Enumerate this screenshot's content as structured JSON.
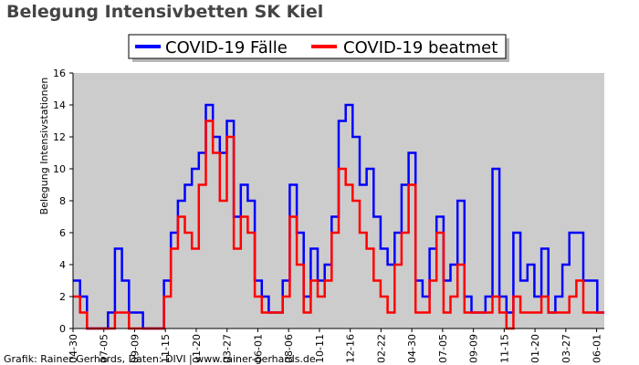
{
  "chart_data": {
    "type": "line",
    "title": "Belegung Intensivbetten SK Kiel",
    "xlabel": "",
    "ylabel": "Belegung Intensivstationen",
    "ylim": [
      0,
      16
    ],
    "yticks": [
      0,
      2,
      4,
      6,
      8,
      10,
      12,
      14,
      16
    ],
    "grid": false,
    "legend_position": "top",
    "background": "#cccccc",
    "x_tick_labels": [
      "04-30",
      "07-05",
      "09-09",
      "11-15",
      "01-20",
      "03-27",
      "06-01",
      "08-06",
      "10-11",
      "12-16",
      "02-22",
      "04-30",
      "07-05",
      "09-09",
      "11-15",
      "01-20",
      "03-27",
      "06-01"
    ],
    "x_axis_length_weeks": 108,
    "credit": "Grafik: Rainer Gerhards, Daten: DIVI | www.rainer-gerhards.de",
    "series": [
      {
        "name": "COVID-19 Fälle",
        "color": "#0000ff",
        "values": [
          3,
          2,
          0,
          0,
          0,
          1,
          5,
          3,
          1,
          1,
          0,
          0,
          0,
          3,
          6,
          8,
          9,
          10,
          11,
          14,
          12,
          11,
          13,
          7,
          9,
          8,
          3,
          2,
          1,
          1,
          3,
          9,
          6,
          2,
          5,
          3,
          4,
          7,
          13,
          14,
          12,
          9,
          10,
          7,
          5,
          4,
          6,
          9,
          11,
          3,
          2,
          5,
          7,
          3,
          4,
          8,
          2,
          1,
          1,
          2,
          10,
          2,
          1,
          6,
          3,
          4,
          2,
          5,
          1,
          2,
          4,
          6,
          6,
          3,
          3,
          1
        ]
      },
      {
        "name": "COVID-19 beatmet",
        "color": "#ff0000",
        "values": [
          2,
          1,
          0,
          0,
          0,
          0,
          1,
          1,
          0,
          0,
          0,
          0,
          0,
          2,
          5,
          7,
          6,
          5,
          9,
          13,
          11,
          8,
          12,
          5,
          7,
          6,
          2,
          1,
          1,
          1,
          2,
          7,
          4,
          1,
          3,
          2,
          3,
          6,
          10,
          9,
          8,
          6,
          5,
          3,
          2,
          1,
          4,
          6,
          9,
          1,
          1,
          3,
          6,
          1,
          2,
          4,
          1,
          1,
          1,
          1,
          2,
          1,
          0,
          2,
          1,
          1,
          1,
          2,
          1,
          1,
          1,
          2,
          3,
          1,
          1,
          1
        ]
      }
    ]
  }
}
